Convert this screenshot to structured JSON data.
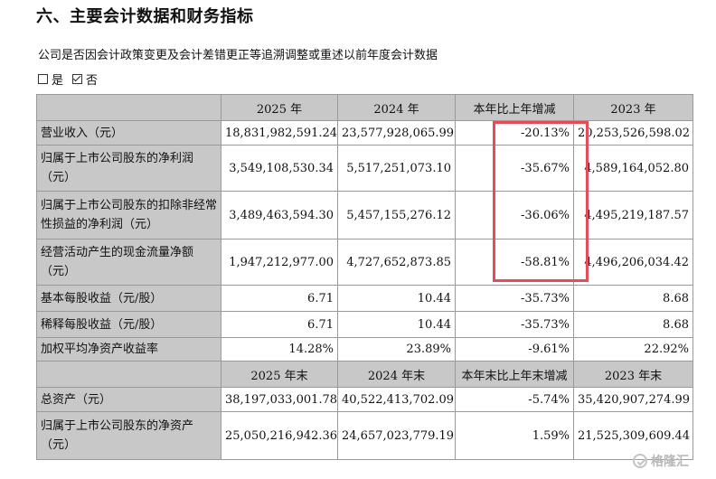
{
  "section_title": "六、主要会计数据和财务指标",
  "restatement_question": "公司是否因会计政策变更及会计差错更正等追溯调整或重述以前年度会计数据",
  "options": {
    "yes": "是",
    "no": "否",
    "selected": "no"
  },
  "table": {
    "header1": [
      "",
      "2025 年",
      "2024 年",
      "本年比上年增减",
      "2023 年"
    ],
    "rows1": [
      {
        "label": "营业收入（元）",
        "v2025": "18,831,982,591.24",
        "v2024": "23,577,928,065.99",
        "change": "-20.13%",
        "v2023": "20,253,526,598.02"
      },
      {
        "label": "归属于上市公司股东的净利润（元）",
        "v2025": "3,549,108,530.34",
        "v2024": "5,517,251,073.10",
        "change": "-35.67%",
        "v2023": "4,589,164,052.80"
      },
      {
        "label": "归属于上市公司股东的扣除非经常性损益的净利润（元）",
        "v2025": "3,489,463,594.30",
        "v2024": "5,457,155,276.12",
        "change": "-36.06%",
        "v2023": "4,495,219,187.57"
      },
      {
        "label": "经营活动产生的现金流量净额（元）",
        "v2025": "1,947,212,977.00",
        "v2024": "4,727,652,873.85",
        "change": "-58.81%",
        "v2023": "4,496,206,034.42"
      },
      {
        "label": "基本每股收益（元/股）",
        "v2025": "6.71",
        "v2024": "10.44",
        "change": "-35.73%",
        "v2023": "8.68"
      },
      {
        "label": "稀释每股收益（元/股）",
        "v2025": "6.71",
        "v2024": "10.44",
        "change": "-35.73%",
        "v2023": "8.68"
      },
      {
        "label": "加权平均净资产收益率",
        "v2025": "14.28%",
        "v2024": "23.89%",
        "change": "-9.61%",
        "v2023": "22.92%"
      }
    ],
    "header2": [
      "",
      "2025 年末",
      "2024 年末",
      "本年末比上年末增减",
      "2023 年末"
    ],
    "rows2": [
      {
        "label": "总资产（元）",
        "v2025": "38,197,033,001.78",
        "v2024": "40,522,413,702.09",
        "change": "-5.74%",
        "v2023": "35,420,907,274.99"
      },
      {
        "label": "归属于上市公司股东的净资产（元）",
        "v2025": "25,050,216,942.36",
        "v2024": "24,657,023,779.19",
        "change": "1.59%",
        "v2023": "21,525,309,609.44"
      }
    ]
  },
  "highlight_color": "#e64c57",
  "watermark_text": "格隆汇",
  "watermark_icon": "check-circle-icon"
}
